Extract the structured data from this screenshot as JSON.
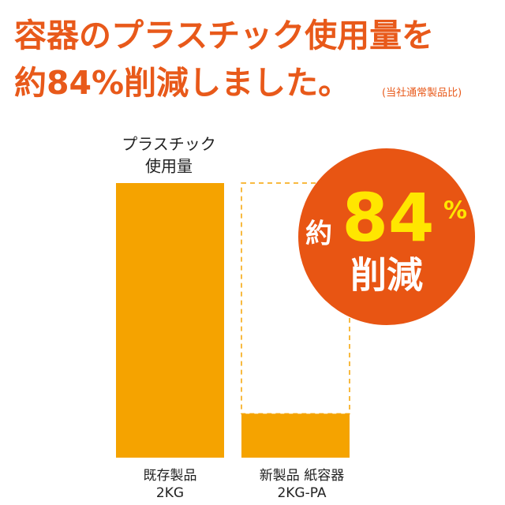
{
  "chart_data": {
    "type": "bar",
    "title": [
      "容器のプラスチック使用量を",
      "約84%削減しました。"
    ],
    "note": "(当社通常製品比)",
    "ylabel": [
      "プラスチック",
      "使用量"
    ],
    "categories": [
      [
        "既存製品",
        "2KG"
      ],
      [
        "新製品 紙容器",
        "2KG-PA"
      ]
    ],
    "values": [
      100,
      16
    ],
    "color": "#f5a300",
    "ylim": [
      0,
      100
    ],
    "reduction": {
      "prefix": "約",
      "value": 84,
      "unit": "%",
      "label": "削減"
    }
  }
}
